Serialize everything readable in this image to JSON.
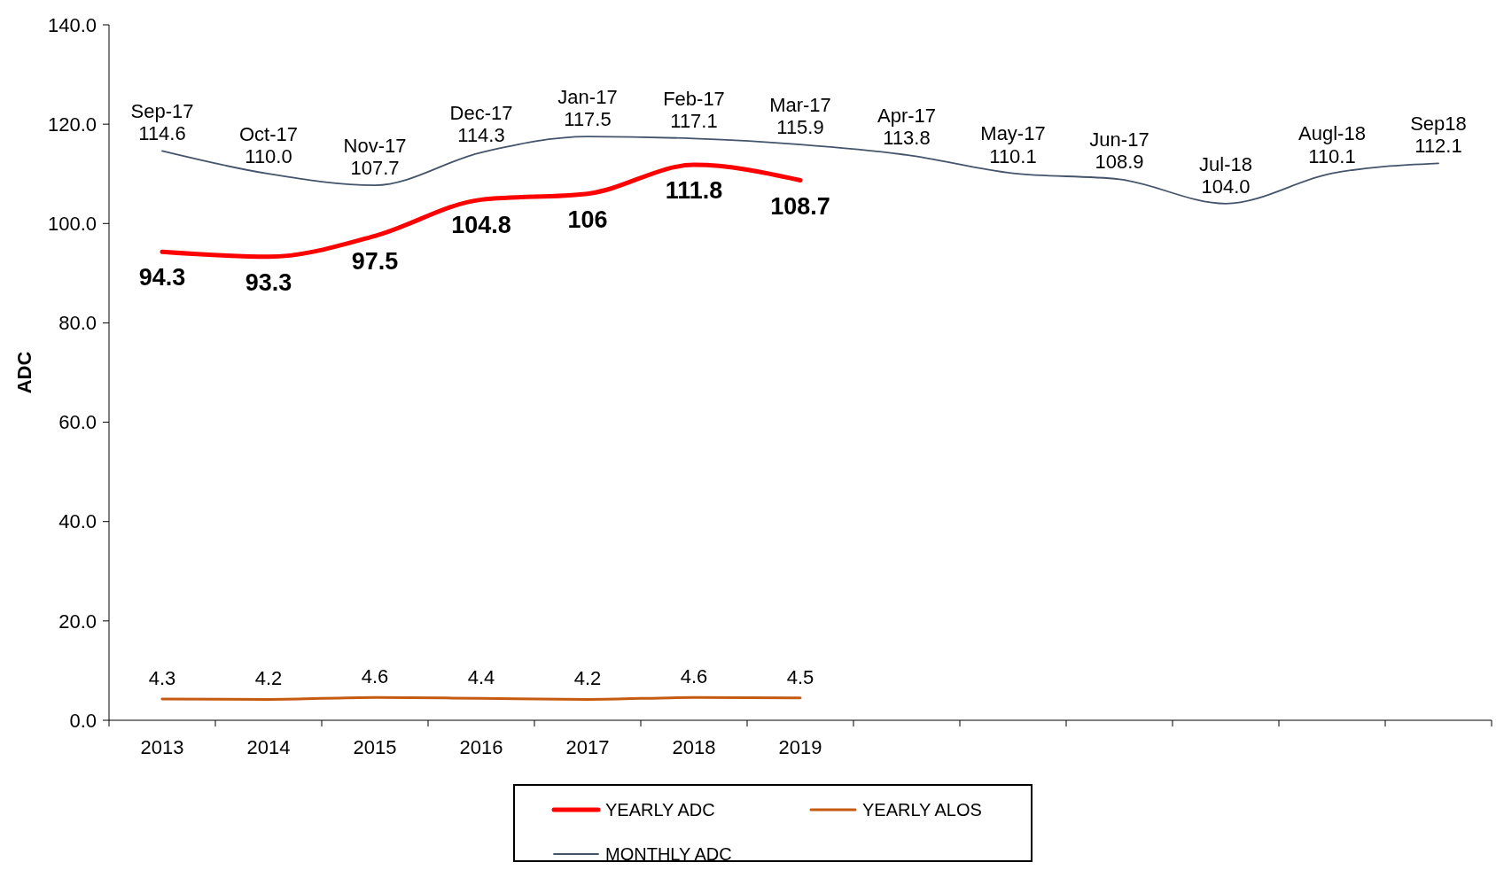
{
  "chart_data": {
    "type": "line",
    "ylabel": "ADC",
    "categories": [
      "2013",
      "2014",
      "2015",
      "2016",
      "2017",
      "2018",
      "2019",
      null,
      null,
      null,
      null,
      null,
      null
    ],
    "ylim": [
      0,
      140
    ],
    "yticks": [
      {
        "value": 0,
        "label": "0.0"
      },
      {
        "value": 20,
        "label": "20.0"
      },
      {
        "value": 40,
        "label": "40.0"
      },
      {
        "value": 60,
        "label": "60.0"
      },
      {
        "value": 80,
        "label": "80.0"
      },
      {
        "value": 100,
        "label": "100.0"
      },
      {
        "value": 120,
        "label": "120.0"
      },
      {
        "value": 140,
        "label": "140.0"
      }
    ],
    "grid": false,
    "legend": "bottom",
    "marker": "none",
    "line_style": "solid",
    "series": [
      {
        "name": "YEARLY ADC",
        "color": "#ff0000",
        "values": [
          94.3,
          93.3,
          97.5,
          104.8,
          106,
          111.8,
          108.7,
          null,
          null,
          null,
          null,
          null,
          null
        ],
        "value_labels": [
          "94.3",
          "93.3",
          "97.5",
          "104.8",
          "106",
          "111.8",
          "108.7",
          null,
          null,
          null,
          null,
          null,
          null
        ]
      },
      {
        "name": "YEARLY ALOS",
        "color": "#c55a11",
        "values": [
          4.3,
          4.2,
          4.6,
          4.4,
          4.2,
          4.6,
          4.5,
          null,
          null,
          null,
          null,
          null,
          null
        ],
        "value_labels": [
          "4.3",
          "4.2",
          "4.6",
          "4.4",
          "4.2",
          "4.6",
          "4.5",
          null,
          null,
          null,
          null,
          null,
          null
        ]
      },
      {
        "name": "MONTHLY ADC",
        "color": "#44546a",
        "values": [
          114.6,
          110.0,
          107.7,
          114.3,
          117.5,
          117.1,
          115.9,
          113.8,
          110.1,
          108.9,
          104.0,
          110.1,
          112.1
        ],
        "value_labels": [
          "Sep-17\n114.6",
          "Oct-17\n110.0",
          "Nov-17\n107.7",
          "Dec-17\n114.3",
          "Jan-17\n117.5",
          "Feb-17\n117.1",
          "Mar-17\n115.9",
          "Apr-17\n113.8",
          "May-17\n110.1",
          "Jun-17\n108.9",
          "Jul-18\n104.0",
          "Augl-18\n110.1",
          "Sep18\n112.1"
        ]
      }
    ]
  }
}
